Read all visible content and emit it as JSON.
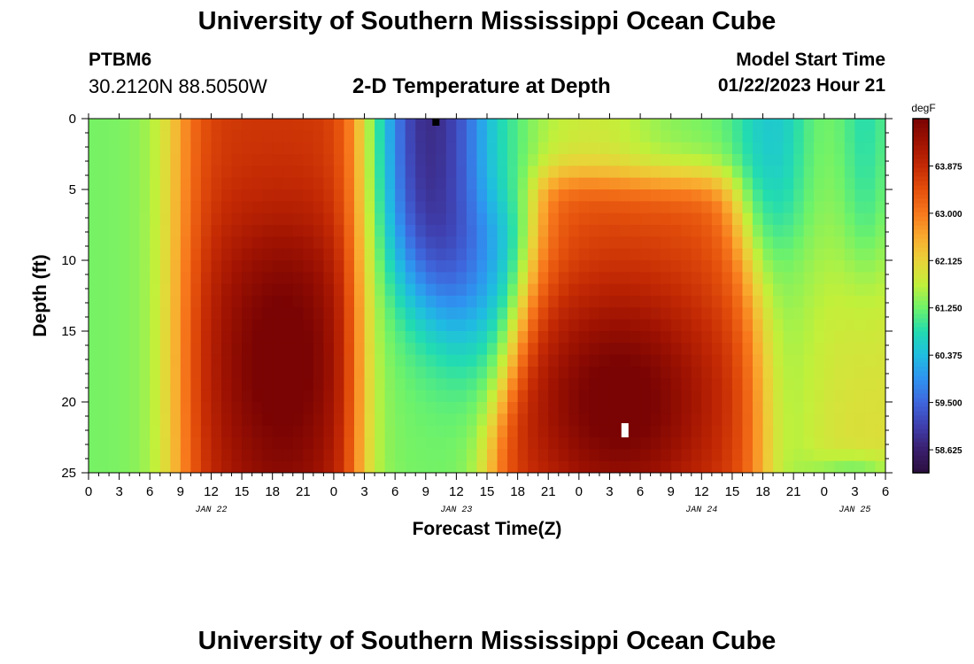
{
  "header": {
    "title": "University of Southern Mississippi Ocean Cube",
    "station": "PTBM6",
    "coords": "30.2120N  88.5050W",
    "subtitle": "2-D Temperature at Depth",
    "model_start_label": "Model Start Time",
    "model_start_value": "01/22/2023 Hour 21"
  },
  "footer": {
    "title": "University of Southern Mississippi Ocean Cube"
  },
  "colors": {
    "colormap": [
      "#2b0f3e",
      "#3a1f6e",
      "#3f3fae",
      "#3f66dc",
      "#2f93f0",
      "#1fbde0",
      "#22dcb0",
      "#6ef26a",
      "#c2f03a",
      "#ead339",
      "#f9ab2f",
      "#f7781c",
      "#e4500c",
      "#c42a04",
      "#a01302",
      "#7a0403"
    ],
    "marker": "#ffffff",
    "marker_top": "#000000"
  },
  "chart_data": {
    "type": "heatmap",
    "title": "2-D Temperature at Depth",
    "xlabel": "Forecast Time(Z)",
    "ylabel": "Depth (ft)",
    "x_range_hours": [
      0,
      78
    ],
    "x_tick_labels": [
      "0",
      "3",
      "6",
      "9",
      "12",
      "15",
      "18",
      "21",
      "0",
      "3",
      "6",
      "9",
      "12",
      "15",
      "18",
      "21",
      "0",
      "3",
      "6",
      "9",
      "12",
      "15",
      "18",
      "21",
      "0",
      "3",
      "6"
    ],
    "day_labels": [
      {
        "label": "JAN 22",
        "hour": 12
      },
      {
        "label": "JAN 23",
        "hour": 36
      },
      {
        "label": "JAN 24",
        "hour": 60
      },
      {
        "label": "JAN 25",
        "hour": 75
      }
    ],
    "y_range": [
      0,
      25
    ],
    "y_ticks": [
      0,
      5,
      10,
      15,
      20,
      25
    ],
    "colorbar": {
      "unit": "degF",
      "min": 58.2,
      "max": 64.75,
      "tick_values": [
        58.625,
        59.5,
        60.375,
        61.25,
        62.125,
        63.0,
        63.875
      ],
      "tick_labels": [
        "58.625",
        "59.500",
        "60.375",
        "61.250",
        "62.125",
        "63.000",
        "63.875"
      ]
    },
    "features": [
      {
        "name": "warm-core-day1",
        "hour": 19.5,
        "depth": 17,
        "value": 64.2
      },
      {
        "name": "cold-core-upper",
        "hour": 32,
        "depth": 1,
        "value": 58.7
      },
      {
        "name": "warm-core-day2",
        "hour": 52,
        "depth": 19,
        "value": 64.7
      },
      {
        "name": "cool-background-late",
        "hour": 70,
        "depth": 10,
        "value": 61.6
      }
    ],
    "markers": [
      {
        "name": "current-time-marker",
        "hour": 52.5,
        "depth": 22
      },
      {
        "name": "top-marker",
        "hour": 34,
        "depth": 0.2
      }
    ]
  }
}
